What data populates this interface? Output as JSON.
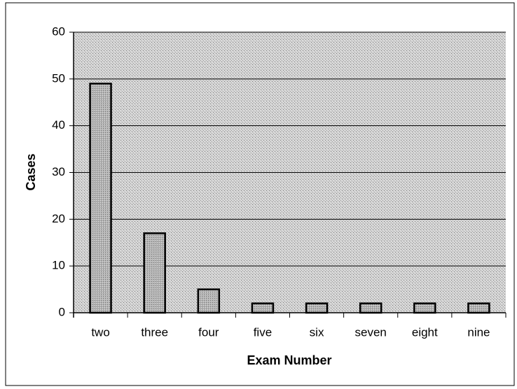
{
  "chart_data": {
    "type": "bar",
    "x_label": "Exam Number",
    "y_label": "Cases",
    "categories": [
      "two",
      "three",
      "four",
      "five",
      "six",
      "seven",
      "eight",
      "nine"
    ],
    "values": [
      49,
      17,
      5,
      2,
      2,
      2,
      2,
      2
    ],
    "color": "#b4b4b4",
    "ylim": [
      0,
      60
    ],
    "yticks": [
      0,
      10,
      20,
      30,
      40,
      50,
      60
    ],
    "grid": true
  }
}
